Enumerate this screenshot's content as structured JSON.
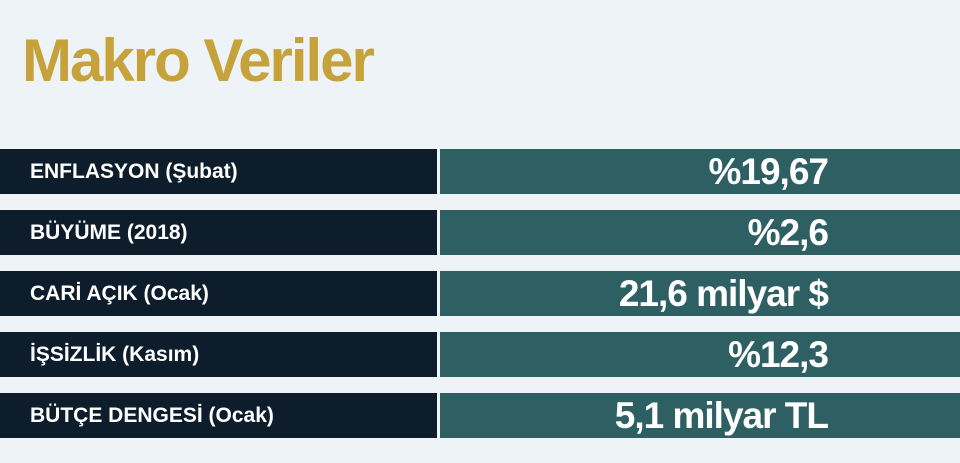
{
  "title": "Makro Veriler",
  "table": {
    "rows": [
      [
        "ENFLASYON (Şubat)",
        "%19,67"
      ],
      [
        "BÜYÜME (2018)",
        "%2,6"
      ],
      [
        "CARİ AÇIK (Ocak)",
        "21,6 milyar $"
      ],
      [
        "İŞSİZLİK (Kasım)",
        "%12,3"
      ],
      [
        "BÜTÇE DENGESİ (Ocak)",
        "5,1 milyar TL"
      ]
    ]
  }
}
